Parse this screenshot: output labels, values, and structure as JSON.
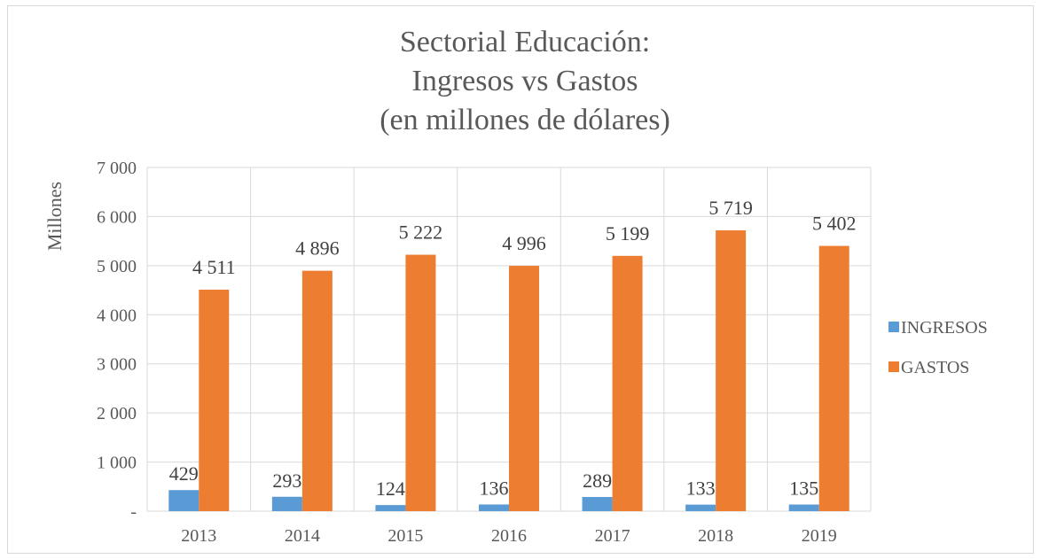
{
  "chart_data": {
    "type": "bar",
    "title_lines": [
      "Sectorial Educación:",
      "Ingresos vs Gastos",
      "(en millones de dólares)"
    ],
    "ylabel": "Millones",
    "xlabel": "",
    "categories": [
      "2013",
      "2014",
      "2015",
      "2016",
      "2017",
      "2018",
      "2019"
    ],
    "ylim": [
      0,
      7000
    ],
    "yticks": [
      0,
      1000,
      2000,
      3000,
      4000,
      5000,
      6000,
      7000
    ],
    "ytick_labels": [
      "-",
      "1 000",
      "2 000",
      "3 000",
      "4 000",
      "5 000",
      "6 000",
      "7 000"
    ],
    "grid": true,
    "legend_position": "right",
    "series": [
      {
        "name": "INGRESOS",
        "color": "#5b9bd5",
        "values": [
          429,
          293,
          124,
          136,
          289,
          133,
          135
        ],
        "labels": [
          "429",
          "293",
          "124",
          "136",
          "289",
          "133",
          "135"
        ]
      },
      {
        "name": "GASTOS",
        "color": "#ed7d31",
        "values": [
          4511,
          4896,
          5222,
          4996,
          5199,
          5719,
          5402
        ],
        "labels": [
          "4 511",
          "4 896",
          "5 222",
          "4 996",
          "5 199",
          "5 719",
          "5 402"
        ]
      }
    ]
  }
}
